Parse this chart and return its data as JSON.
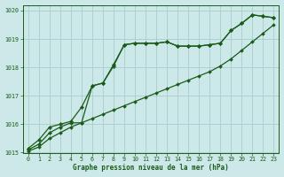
{
  "title": "Graphe pression niveau de la mer (hPa)",
  "background_color": "#cde8e8",
  "plot_bg_color": "#cde8e8",
  "grid_color": "#a8cccc",
  "line_color": "#1a5c1a",
  "xlim": [
    -0.5,
    23.5
  ],
  "ylim": [
    1015,
    1020.2
  ],
  "xticks": [
    0,
    1,
    2,
    3,
    4,
    5,
    6,
    7,
    8,
    9,
    10,
    11,
    12,
    13,
    14,
    15,
    16,
    17,
    18,
    19,
    20,
    21,
    22,
    23
  ],
  "yticks": [
    1015,
    1016,
    1017,
    1018,
    1019,
    1020
  ],
  "series1_x": [
    0,
    1,
    2,
    3,
    4,
    5,
    6,
    7,
    8,
    9,
    10,
    11,
    12,
    13,
    14,
    15,
    16,
    17,
    18,
    19,
    20,
    21,
    22,
    23
  ],
  "series1": [
    1015.15,
    1015.45,
    1015.9,
    1016.0,
    1016.1,
    1016.6,
    1017.35,
    1017.45,
    1018.1,
    1018.8,
    1018.85,
    1018.85,
    1018.85,
    1018.9,
    1018.75,
    1018.75,
    1018.75,
    1018.8,
    1018.85,
    1019.3,
    1019.55,
    1019.85,
    1019.8,
    1019.75
  ],
  "series2_x": [
    0,
    1,
    2,
    3,
    4,
    5,
    6,
    7,
    8,
    9,
    10,
    11,
    12,
    13,
    14,
    15,
    16,
    17,
    18,
    19,
    20,
    21,
    22,
    23
  ],
  "series2": [
    1015.1,
    1015.3,
    1015.7,
    1015.9,
    1016.05,
    1016.05,
    1017.35,
    1017.45,
    1018.05,
    1018.8,
    1018.85,
    1018.85,
    1018.85,
    1018.9,
    1018.75,
    1018.75,
    1018.75,
    1018.8,
    1018.85,
    1019.3,
    1019.55,
    1019.85,
    1019.8,
    1019.75
  ],
  "series3_x": [
    0,
    1,
    2,
    3,
    4,
    5,
    6,
    7,
    8,
    9,
    10,
    11,
    12,
    13,
    14,
    15,
    16,
    17,
    18,
    19,
    20,
    21,
    22,
    23
  ],
  "series3": [
    1015.05,
    1015.2,
    1015.5,
    1015.7,
    1015.9,
    1016.05,
    1016.2,
    1016.35,
    1016.5,
    1016.65,
    1016.8,
    1016.95,
    1017.1,
    1017.25,
    1017.4,
    1017.55,
    1017.7,
    1017.85,
    1018.05,
    1018.3,
    1018.6,
    1018.9,
    1019.2,
    1019.5
  ]
}
